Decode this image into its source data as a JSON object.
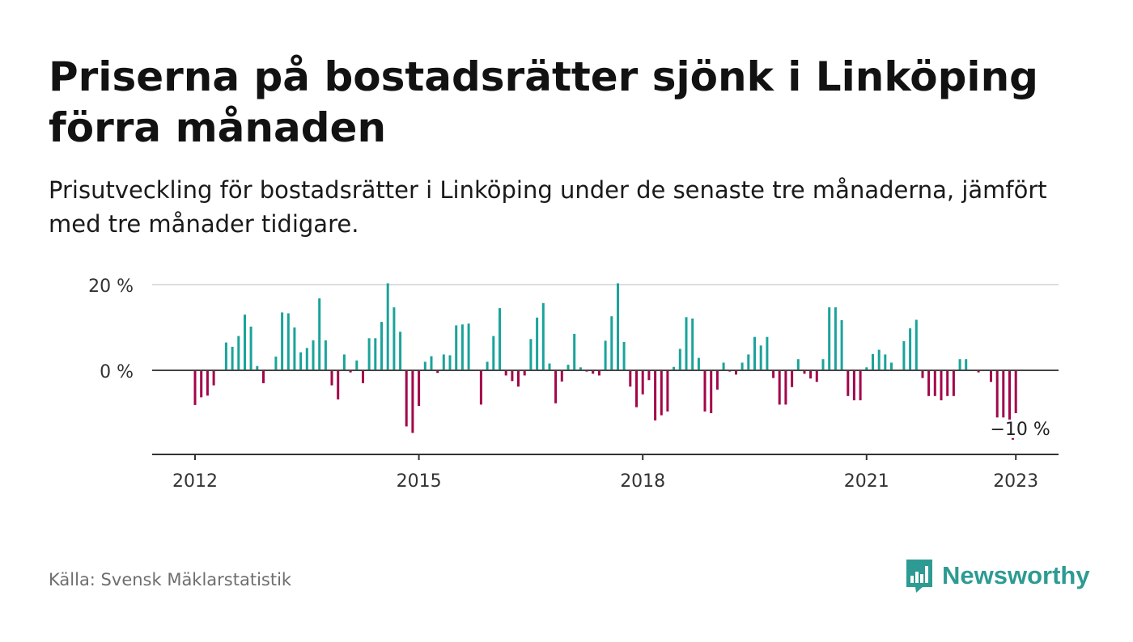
{
  "title": "Priserna på bostadsrätter sjönk i Linköping förra månaden",
  "subtitle": "Prisutveckling för bostadsrätter i Linköping under de senaste tre månaderna, jämfört med tre månader tidigare.",
  "source": "Källa: Svensk Mäklarstatistik",
  "brand": {
    "name": "Newsworthy",
    "icon": "newsworthy-logo-icon",
    "color": "#2d9b93"
  },
  "chart_data": {
    "type": "bar",
    "title": "Priserna på bostadsrätter sjönk i Linköping förra månaden",
    "subtitle": "Prisutveckling för bostadsrätter i Linköping under de senaste tre månaderna, jämfört med tre månader tidigare.",
    "x_unit": "year",
    "x_ticks": [
      "2012",
      "2015",
      "2018",
      "2021",
      "2023"
    ],
    "y_ticks": [
      "20 %",
      "0 %"
    ],
    "y_tick_values": [
      20,
      0
    ],
    "ylim": [
      -20,
      20
    ],
    "grid": "horizontal",
    "positive_color": "#1aa39a",
    "negative_color": "#a3054a",
    "annotation": {
      "label": "−10 %",
      "x": 2022.96,
      "y": -16
    },
    "x": [
      2012.0,
      2012.083,
      2012.167,
      2012.25,
      2012.333,
      2012.417,
      2012.5,
      2012.583,
      2012.667,
      2012.75,
      2012.833,
      2012.917,
      2013.0,
      2013.083,
      2013.167,
      2013.25,
      2013.333,
      2013.417,
      2013.5,
      2013.583,
      2013.667,
      2013.75,
      2013.833,
      2013.917,
      2014.0,
      2014.083,
      2014.167,
      2014.25,
      2014.333,
      2014.417,
      2014.5,
      2014.583,
      2014.667,
      2014.75,
      2014.833,
      2014.917,
      2015.0,
      2015.083,
      2015.167,
      2015.25,
      2015.333,
      2015.417,
      2015.5,
      2015.583,
      2015.667,
      2015.75,
      2015.833,
      2015.917,
      2016.0,
      2016.083,
      2016.167,
      2016.25,
      2016.333,
      2016.417,
      2016.5,
      2016.583,
      2016.667,
      2016.75,
      2016.833,
      2016.917,
      2017.0,
      2017.083,
      2017.167,
      2017.25,
      2017.333,
      2017.417,
      2017.5,
      2017.583,
      2017.667,
      2017.75,
      2017.833,
      2017.917,
      2018.0,
      2018.083,
      2018.167,
      2018.25,
      2018.333,
      2018.417,
      2018.5,
      2018.583,
      2018.667,
      2018.75,
      2018.833,
      2018.917,
      2019.0,
      2019.083,
      2019.167,
      2019.25,
      2019.333,
      2019.417,
      2019.5,
      2019.583,
      2019.667,
      2019.75,
      2019.833,
      2019.917,
      2020.0,
      2020.083,
      2020.167,
      2020.25,
      2020.333,
      2020.417,
      2020.5,
      2020.583,
      2020.667,
      2020.75,
      2020.833,
      2020.917,
      2021.0,
      2021.083,
      2021.167,
      2021.25,
      2021.333,
      2021.417,
      2021.5,
      2021.583,
      2021.667,
      2021.75,
      2021.833,
      2021.917,
      2022.0,
      2022.083,
      2022.167,
      2022.25,
      2022.333,
      2022.417,
      2022.5,
      2022.583,
      2022.667,
      2022.75,
      2022.833,
      2022.917,
      2023.0
    ],
    "values": [
      -8.1,
      -6.3,
      -5.9,
      -3.5,
      0,
      6.5,
      5.5,
      8,
      13,
      10.2,
      1,
      -3,
      0,
      3.2,
      13.5,
      13.3,
      10,
      4.2,
      5.2,
      7,
      16.8,
      7,
      -3.5,
      -6.8,
      3.7,
      -0.5,
      2.3,
      -3,
      7.5,
      7.5,
      11.3,
      20.3,
      14.7,
      9,
      -13.1,
      -14.6,
      -8.3,
      2,
      3.3,
      -0.6,
      3.7,
      3.5,
      10.5,
      10.7,
      10.9,
      0,
      -8,
      2,
      8,
      14.5,
      -1.2,
      -2.5,
      -3.8,
      -1.2,
      7.3,
      12.3,
      15.7,
      1.6,
      -7.7,
      -2.6,
      1.3,
      8.5,
      0.7,
      -0.3,
      -0.8,
      -1.2,
      6.9,
      12.6,
      20.3,
      6.6,
      -3.8,
      -8.6,
      -5.6,
      -2.3,
      -11.7,
      -10.5,
      -9.6,
      0.8,
      5,
      12.4,
      12.1,
      2.9,
      -9.6,
      -10,
      -4.5,
      1.8,
      -0.3,
      -1,
      1.8,
      3.7,
      7.8,
      5.8,
      7.8,
      -1.8,
      -8,
      -8,
      -3.9,
      2.6,
      -0.8,
      -1.9,
      -2.7,
      2.6,
      14.7,
      14.7,
      11.7,
      -6,
      -7,
      -7,
      0.7,
      3.8,
      4.8,
      3.7,
      1.8,
      0,
      6.8,
      9.8,
      11.8,
      -1.8,
      -6,
      -6,
      -7,
      -6,
      -6,
      2.6,
      2.6,
      0,
      -0.5,
      0,
      -2.7,
      -11,
      -11,
      -11.5,
      -10
    ]
  }
}
